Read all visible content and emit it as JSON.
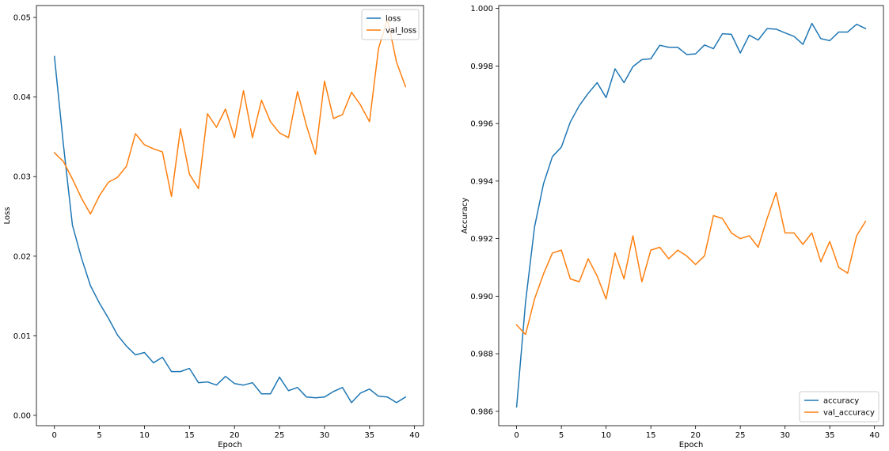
{
  "chart_data": [
    {
      "type": "line",
      "xlabel": "Epoch",
      "ylabel": "Loss",
      "xlim": [
        -2,
        41
      ],
      "ylim": [
        -0.0013,
        0.0515
      ],
      "xticks": [
        0,
        5,
        10,
        15,
        20,
        25,
        30,
        35,
        40
      ],
      "yticks": [
        0.0,
        0.01,
        0.02,
        0.03,
        0.04,
        0.05
      ],
      "ytick_labels": [
        "0.00",
        "0.01",
        "0.02",
        "0.03",
        "0.04",
        "0.05"
      ],
      "legend_position": "upper right",
      "x": [
        0,
        1,
        2,
        3,
        4,
        5,
        6,
        7,
        8,
        9,
        10,
        11,
        12,
        13,
        14,
        15,
        16,
        17,
        18,
        19,
        20,
        21,
        22,
        23,
        24,
        25,
        26,
        27,
        28,
        29,
        30,
        31,
        32,
        33,
        34,
        35,
        36,
        37,
        38,
        39
      ],
      "series": [
        {
          "name": "loss",
          "color": "#1f77b4",
          "values": [
            0.0451,
            0.034,
            0.0239,
            0.0198,
            0.0163,
            0.0141,
            0.0122,
            0.0101,
            0.0087,
            0.0076,
            0.0079,
            0.0066,
            0.0073,
            0.0055,
            0.0055,
            0.0059,
            0.0041,
            0.0042,
            0.0038,
            0.0049,
            0.004,
            0.0038,
            0.0041,
            0.0027,
            0.0027,
            0.0048,
            0.0031,
            0.0035,
            0.0023,
            0.0022,
            0.0023,
            0.003,
            0.0035,
            0.0016,
            0.0028,
            0.0033,
            0.0024,
            0.0023,
            0.0016,
            0.0023
          ]
        },
        {
          "name": "val_loss",
          "color": "#ff7f0e",
          "values": [
            0.033,
            0.0319,
            0.0297,
            0.0273,
            0.0253,
            0.0276,
            0.0293,
            0.0299,
            0.0313,
            0.0354,
            0.034,
            0.0335,
            0.0331,
            0.0275,
            0.036,
            0.0303,
            0.0285,
            0.0379,
            0.0362,
            0.0385,
            0.0349,
            0.0408,
            0.0349,
            0.0396,
            0.0369,
            0.0355,
            0.0349,
            0.0407,
            0.0364,
            0.0328,
            0.042,
            0.0373,
            0.0378,
            0.0406,
            0.039,
            0.0369,
            0.0461,
            0.0498,
            0.0444,
            0.0413
          ]
        }
      ]
    },
    {
      "type": "line",
      "xlabel": "Epoch",
      "ylabel": "Accuracy",
      "xlim": [
        -2,
        41
      ],
      "ylim": [
        0.9855,
        1.0001
      ],
      "xticks": [
        0,
        5,
        10,
        15,
        20,
        25,
        30,
        35,
        40
      ],
      "yticks": [
        0.986,
        0.988,
        0.99,
        0.992,
        0.994,
        0.996,
        0.998,
        1.0
      ],
      "ytick_labels": [
        "0.986",
        "0.988",
        "0.990",
        "0.992",
        "0.994",
        "0.996",
        "0.998",
        "1.000"
      ],
      "legend_position": "lower right",
      "x": [
        0,
        1,
        2,
        3,
        4,
        5,
        6,
        7,
        8,
        9,
        10,
        11,
        12,
        13,
        14,
        15,
        16,
        17,
        18,
        19,
        20,
        21,
        22,
        23,
        24,
        25,
        26,
        27,
        28,
        29,
        30,
        31,
        32,
        33,
        34,
        35,
        36,
        37,
        38,
        39
      ],
      "series": [
        {
          "name": "accuracy",
          "color": "#1f77b4",
          "values": [
            0.98615,
            0.9898,
            0.9924,
            0.9939,
            0.99485,
            0.99518,
            0.99605,
            0.99662,
            0.99705,
            0.99742,
            0.9969,
            0.9979,
            0.99742,
            0.99798,
            0.99822,
            0.99825,
            0.99872,
            0.99865,
            0.99865,
            0.9984,
            0.99842,
            0.99873,
            0.9986,
            0.99912,
            0.9991,
            0.99845,
            0.99907,
            0.9989,
            0.9993,
            0.99928,
            0.99915,
            0.99903,
            0.99875,
            0.99948,
            0.99895,
            0.99888,
            0.99918,
            0.99918,
            0.99945,
            0.9993
          ]
        },
        {
          "name": "val_accuracy",
          "color": "#ff7f0e",
          "values": [
            0.989,
            0.98867,
            0.9899,
            0.99077,
            0.9915,
            0.9916,
            0.9906,
            0.9905,
            0.9913,
            0.9907,
            0.9899,
            0.9915,
            0.9906,
            0.9921,
            0.9905,
            0.9916,
            0.9917,
            0.9913,
            0.9916,
            0.9914,
            0.9911,
            0.9914,
            0.9928,
            0.9927,
            0.9922,
            0.992,
            0.9921,
            0.9917,
            0.9927,
            0.9936,
            0.9922,
            0.9922,
            0.9918,
            0.9922,
            0.9912,
            0.9919,
            0.991,
            0.9908,
            0.9921,
            0.9926
          ]
        }
      ]
    }
  ]
}
